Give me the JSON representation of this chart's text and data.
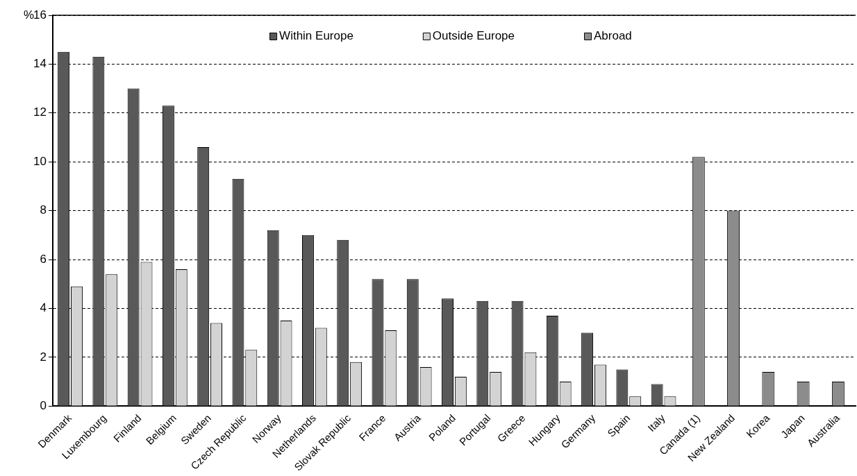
{
  "chart_data": {
    "type": "bar",
    "ylabel": "%",
    "categories": [
      "Denmark",
      "Luxembourg",
      "Finland",
      "Belgium",
      "Sweden",
      "Czech Republic",
      "Norway",
      "Netherlands",
      "Slovak Republic",
      "France",
      "Austria",
      "Poland",
      "Portugal",
      "Greece",
      "Hungary",
      "Germany",
      "Spain",
      "Italy",
      "Canada (1)",
      "New Zealand",
      "Korea",
      "Japan",
      "Australia"
    ],
    "series": [
      {
        "name": "Within Europe",
        "color": "#595959",
        "values": [
          14.5,
          14.3,
          13.0,
          12.3,
          10.6,
          9.3,
          7.2,
          7.0,
          6.8,
          5.2,
          5.2,
          4.4,
          4.3,
          4.3,
          3.7,
          3.0,
          1.5,
          0.9,
          null,
          null,
          null,
          null,
          null
        ]
      },
      {
        "name": "Outside Europe",
        "color": "#d3d3d3",
        "values": [
          4.9,
          5.4,
          5.9,
          5.6,
          3.4,
          2.3,
          3.5,
          3.2,
          1.8,
          3.1,
          1.6,
          1.2,
          1.4,
          2.2,
          1.0,
          1.7,
          0.4,
          0.4,
          null,
          null,
          null,
          null,
          null
        ]
      },
      {
        "name": "Abroad",
        "color": "#8c8c8c",
        "values": [
          null,
          null,
          null,
          null,
          null,
          null,
          null,
          null,
          null,
          null,
          null,
          null,
          null,
          null,
          null,
          null,
          null,
          null,
          10.2,
          8.0,
          1.4,
          1.0,
          1.0
        ]
      }
    ],
    "ylim": [
      0,
      16
    ],
    "yticks": [
      0,
      2,
      4,
      6,
      8,
      10,
      12,
      14,
      16
    ],
    "grid": "y",
    "legend": "top"
  }
}
